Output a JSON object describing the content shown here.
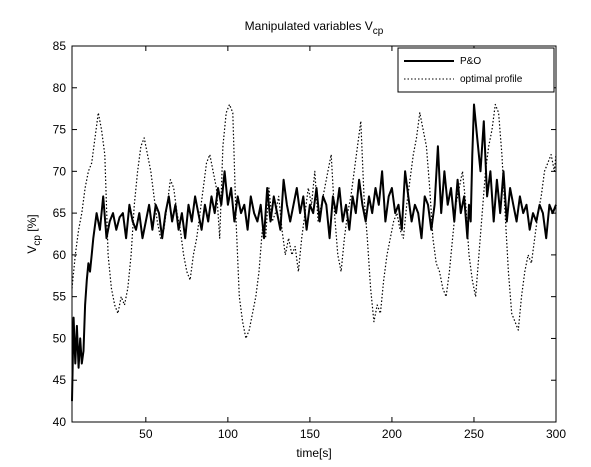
{
  "chart_data": {
    "type": "line",
    "title": "Manipulated variables V",
    "title_subscript": "cp",
    "xlabel": "time[s]",
    "ylabel": "V",
    "ylabel_subscript": "cp",
    "ylabel_suffix": " [%]",
    "xlim": [
      5,
      300
    ],
    "ylim": [
      40,
      85
    ],
    "x_ticks": [
      50,
      100,
      150,
      200,
      250,
      300
    ],
    "x_tick_labels": [
      "50",
      "100",
      "150",
      "200",
      "250",
      "300"
    ],
    "y_ticks": [
      40,
      45,
      50,
      55,
      60,
      65,
      70,
      75,
      80,
      85
    ],
    "y_tick_labels": [
      "40",
      "45",
      "50",
      "55",
      "60",
      "65",
      "70",
      "75",
      "80",
      "85"
    ],
    "grid": false,
    "legend_position": "top-right",
    "series": [
      {
        "name": "P&O",
        "style": "solid",
        "color": "#000000",
        "x": [
          5,
          6,
          7,
          8,
          9,
          10,
          11,
          12,
          13,
          14,
          15,
          16,
          17,
          18,
          20,
          22,
          24,
          26,
          28,
          30,
          32,
          34,
          36,
          38,
          40,
          42,
          44,
          46,
          48,
          50,
          52,
          54,
          56,
          58,
          60,
          62,
          64,
          66,
          68,
          70,
          72,
          74,
          76,
          78,
          80,
          82,
          84,
          86,
          88,
          90,
          92,
          94,
          96,
          98,
          100,
          102,
          104,
          106,
          108,
          110,
          112,
          114,
          116,
          118,
          120,
          122,
          124,
          126,
          128,
          130,
          132,
          134,
          136,
          138,
          140,
          142,
          144,
          146,
          148,
          150,
          152,
          154,
          156,
          158,
          160,
          162,
          164,
          166,
          168,
          170,
          172,
          174,
          176,
          178,
          180,
          182,
          184,
          186,
          188,
          190,
          192,
          194,
          196,
          198,
          200,
          202,
          204,
          206,
          208,
          210,
          212,
          214,
          216,
          218,
          220,
          222,
          224,
          226,
          228,
          230,
          232,
          234,
          236,
          238,
          240,
          242,
          244,
          246,
          247,
          248,
          249,
          250,
          252,
          254,
          256,
          258,
          260,
          262,
          264,
          266,
          268,
          270,
          272,
          274,
          276,
          278,
          280,
          282,
          284,
          286,
          288,
          290,
          292,
          294,
          296,
          298,
          300
        ],
        "y": [
          42.5,
          52.5,
          47,
          51.5,
          46.5,
          50,
          47,
          48.5,
          54,
          57,
          59,
          58,
          60,
          62,
          65,
          63,
          67,
          62,
          64,
          65,
          63,
          64.5,
          65,
          62,
          66,
          64,
          63,
          65,
          62,
          64,
          66,
          63,
          66,
          65,
          62,
          65,
          67,
          64,
          66,
          63,
          65,
          62,
          66,
          64,
          67,
          65,
          63,
          66,
          64,
          67,
          65,
          68,
          66,
          70,
          66,
          68,
          64,
          67,
          65,
          66,
          63,
          67,
          65,
          64,
          66,
          62,
          68,
          64,
          67,
          65,
          63,
          69,
          66,
          64,
          66,
          68,
          65,
          67,
          63,
          66,
          65,
          68,
          64,
          67,
          66,
          62,
          67,
          65,
          68,
          64,
          66,
          63,
          67,
          65,
          69,
          66,
          64,
          67,
          65,
          68,
          66,
          70,
          64,
          67,
          68,
          65,
          66,
          63,
          70,
          67,
          64,
          66,
          65,
          62,
          67,
          66,
          63,
          66,
          73,
          65,
          70,
          66,
          68,
          64,
          69,
          65,
          67,
          62,
          66,
          64,
          72,
          78,
          74,
          70,
          76,
          67,
          70,
          64,
          69,
          65,
          70,
          64,
          68,
          66,
          64,
          67,
          65,
          66,
          63,
          65,
          64,
          66,
          65,
          62,
          66,
          65,
          66
        ]
      },
      {
        "name": "optimal profile",
        "style": "dotted",
        "color": "#000000",
        "x": [
          5,
          7,
          9,
          11,
          13,
          15,
          17,
          19,
          21,
          23,
          25,
          27,
          29,
          31,
          33,
          35,
          37,
          39,
          41,
          43,
          45,
          47,
          49,
          51,
          53,
          55,
          57,
          59,
          61,
          63,
          65,
          67,
          69,
          71,
          73,
          75,
          77,
          79,
          81,
          83,
          85,
          87,
          89,
          91,
          93,
          95,
          97,
          99,
          101,
          103,
          105,
          107,
          109,
          111,
          113,
          115,
          117,
          119,
          121,
          123,
          125,
          127,
          129,
          131,
          133,
          135,
          137,
          139,
          141,
          143,
          145,
          147,
          149,
          151,
          153,
          155,
          157,
          159,
          161,
          163,
          165,
          167,
          169,
          171,
          173,
          175,
          177,
          179,
          181,
          183,
          185,
          187,
          189,
          191,
          193,
          195,
          197,
          199,
          201,
          203,
          205,
          207,
          209,
          211,
          213,
          215,
          217,
          219,
          221,
          223,
          225,
          227,
          229,
          231,
          233,
          235,
          237,
          239,
          241,
          243,
          245,
          247,
          249,
          251,
          253,
          255,
          257,
          259,
          261,
          263,
          265,
          267,
          269,
          271,
          273,
          275,
          277,
          279,
          281,
          283,
          285,
          287,
          289,
          291,
          293,
          295,
          297,
          299,
          300
        ],
        "y": [
          56,
          60,
          63,
          65,
          68,
          70,
          71,
          74,
          77,
          75,
          72,
          60,
          56,
          54,
          53,
          55,
          54,
          56,
          60,
          66,
          70,
          73,
          74,
          72,
          70,
          67,
          64,
          62,
          63,
          66,
          69,
          68,
          65,
          63,
          60,
          58,
          57,
          60,
          62,
          65,
          68,
          71,
          72,
          70,
          68,
          62,
          73,
          77,
          78,
          77,
          64,
          55,
          52,
          50,
          51,
          53,
          55,
          58,
          63,
          62,
          68,
          64,
          65,
          67,
          63,
          60,
          62,
          60,
          61,
          58,
          62,
          65,
          68,
          66,
          70,
          64,
          66,
          68,
          70,
          72,
          65,
          60,
          58,
          62,
          65,
          67,
          70,
          73,
          76,
          67,
          62,
          56,
          52,
          54,
          53,
          57,
          60,
          62,
          64,
          65,
          63,
          62,
          66,
          69,
          72,
          74,
          77,
          75,
          73,
          68,
          62,
          59,
          58,
          56,
          55,
          58,
          62,
          66,
          68,
          70,
          66,
          60,
          57,
          55,
          60,
          65,
          70,
          73,
          75,
          78,
          77,
          72,
          65,
          58,
          53,
          52,
          51,
          55,
          58,
          60,
          59,
          62,
          65,
          67,
          70,
          71,
          72,
          70,
          72
        ]
      }
    ]
  }
}
